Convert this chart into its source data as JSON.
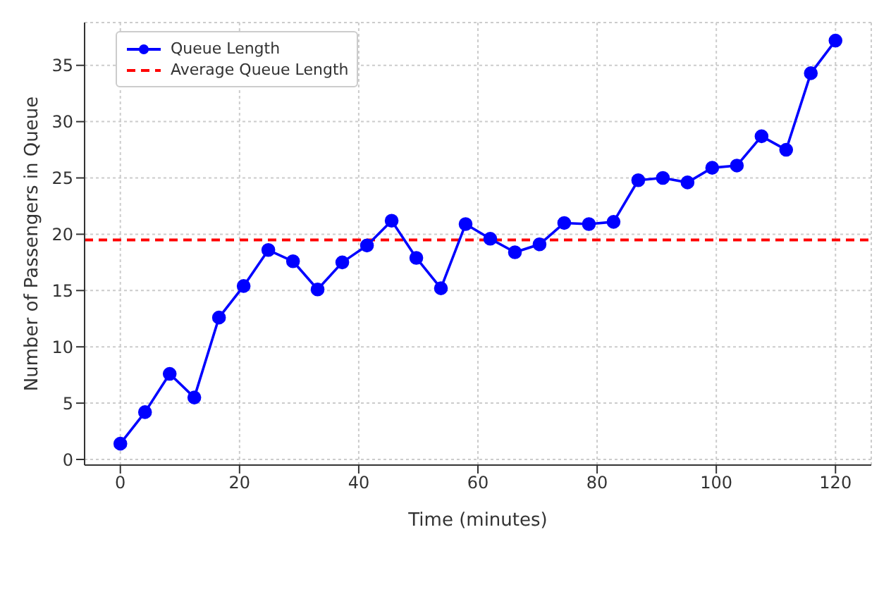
{
  "chart_data": {
    "type": "line",
    "xlabel": "Time (minutes)",
    "ylabel": "Number of Passengers in Queue",
    "x": [
      0,
      4.14,
      8.28,
      12.41,
      16.55,
      20.69,
      24.83,
      28.97,
      33.1,
      37.24,
      41.38,
      45.52,
      49.66,
      53.79,
      57.93,
      62.07,
      66.21,
      70.34,
      74.48,
      78.62,
      82.76,
      86.9,
      91.03,
      95.17,
      99.31,
      103.45,
      107.59,
      111.72,
      115.86,
      120
    ],
    "series": [
      {
        "name": "Queue Length",
        "color": "#0000ff",
        "values": [
          1.4,
          4.2,
          7.6,
          5.5,
          12.6,
          15.4,
          18.6,
          17.6,
          15.1,
          17.5,
          19.0,
          21.2,
          17.9,
          15.2,
          20.9,
          19.6,
          18.4,
          19.1,
          21.0,
          20.9,
          21.1,
          24.8,
          25.0,
          24.6,
          25.9,
          26.1,
          28.7,
          27.5,
          34.3,
          37.2
        ]
      }
    ],
    "ref_lines": [
      {
        "axis": "y",
        "value": 19.5,
        "label": "Average Queue Length",
        "color": "#ff0000",
        "line_style": "dashed"
      }
    ],
    "xlim": [
      -6,
      126
    ],
    "xticks": [
      0,
      20,
      40,
      60,
      80,
      100,
      120
    ],
    "ylim": [
      -0.5,
      38.8
    ],
    "yticks": [
      0,
      5,
      10,
      15,
      20,
      25,
      30,
      35
    ],
    "grid": true,
    "legend": "top left",
    "marker": "circle",
    "line_style": "solid"
  }
}
